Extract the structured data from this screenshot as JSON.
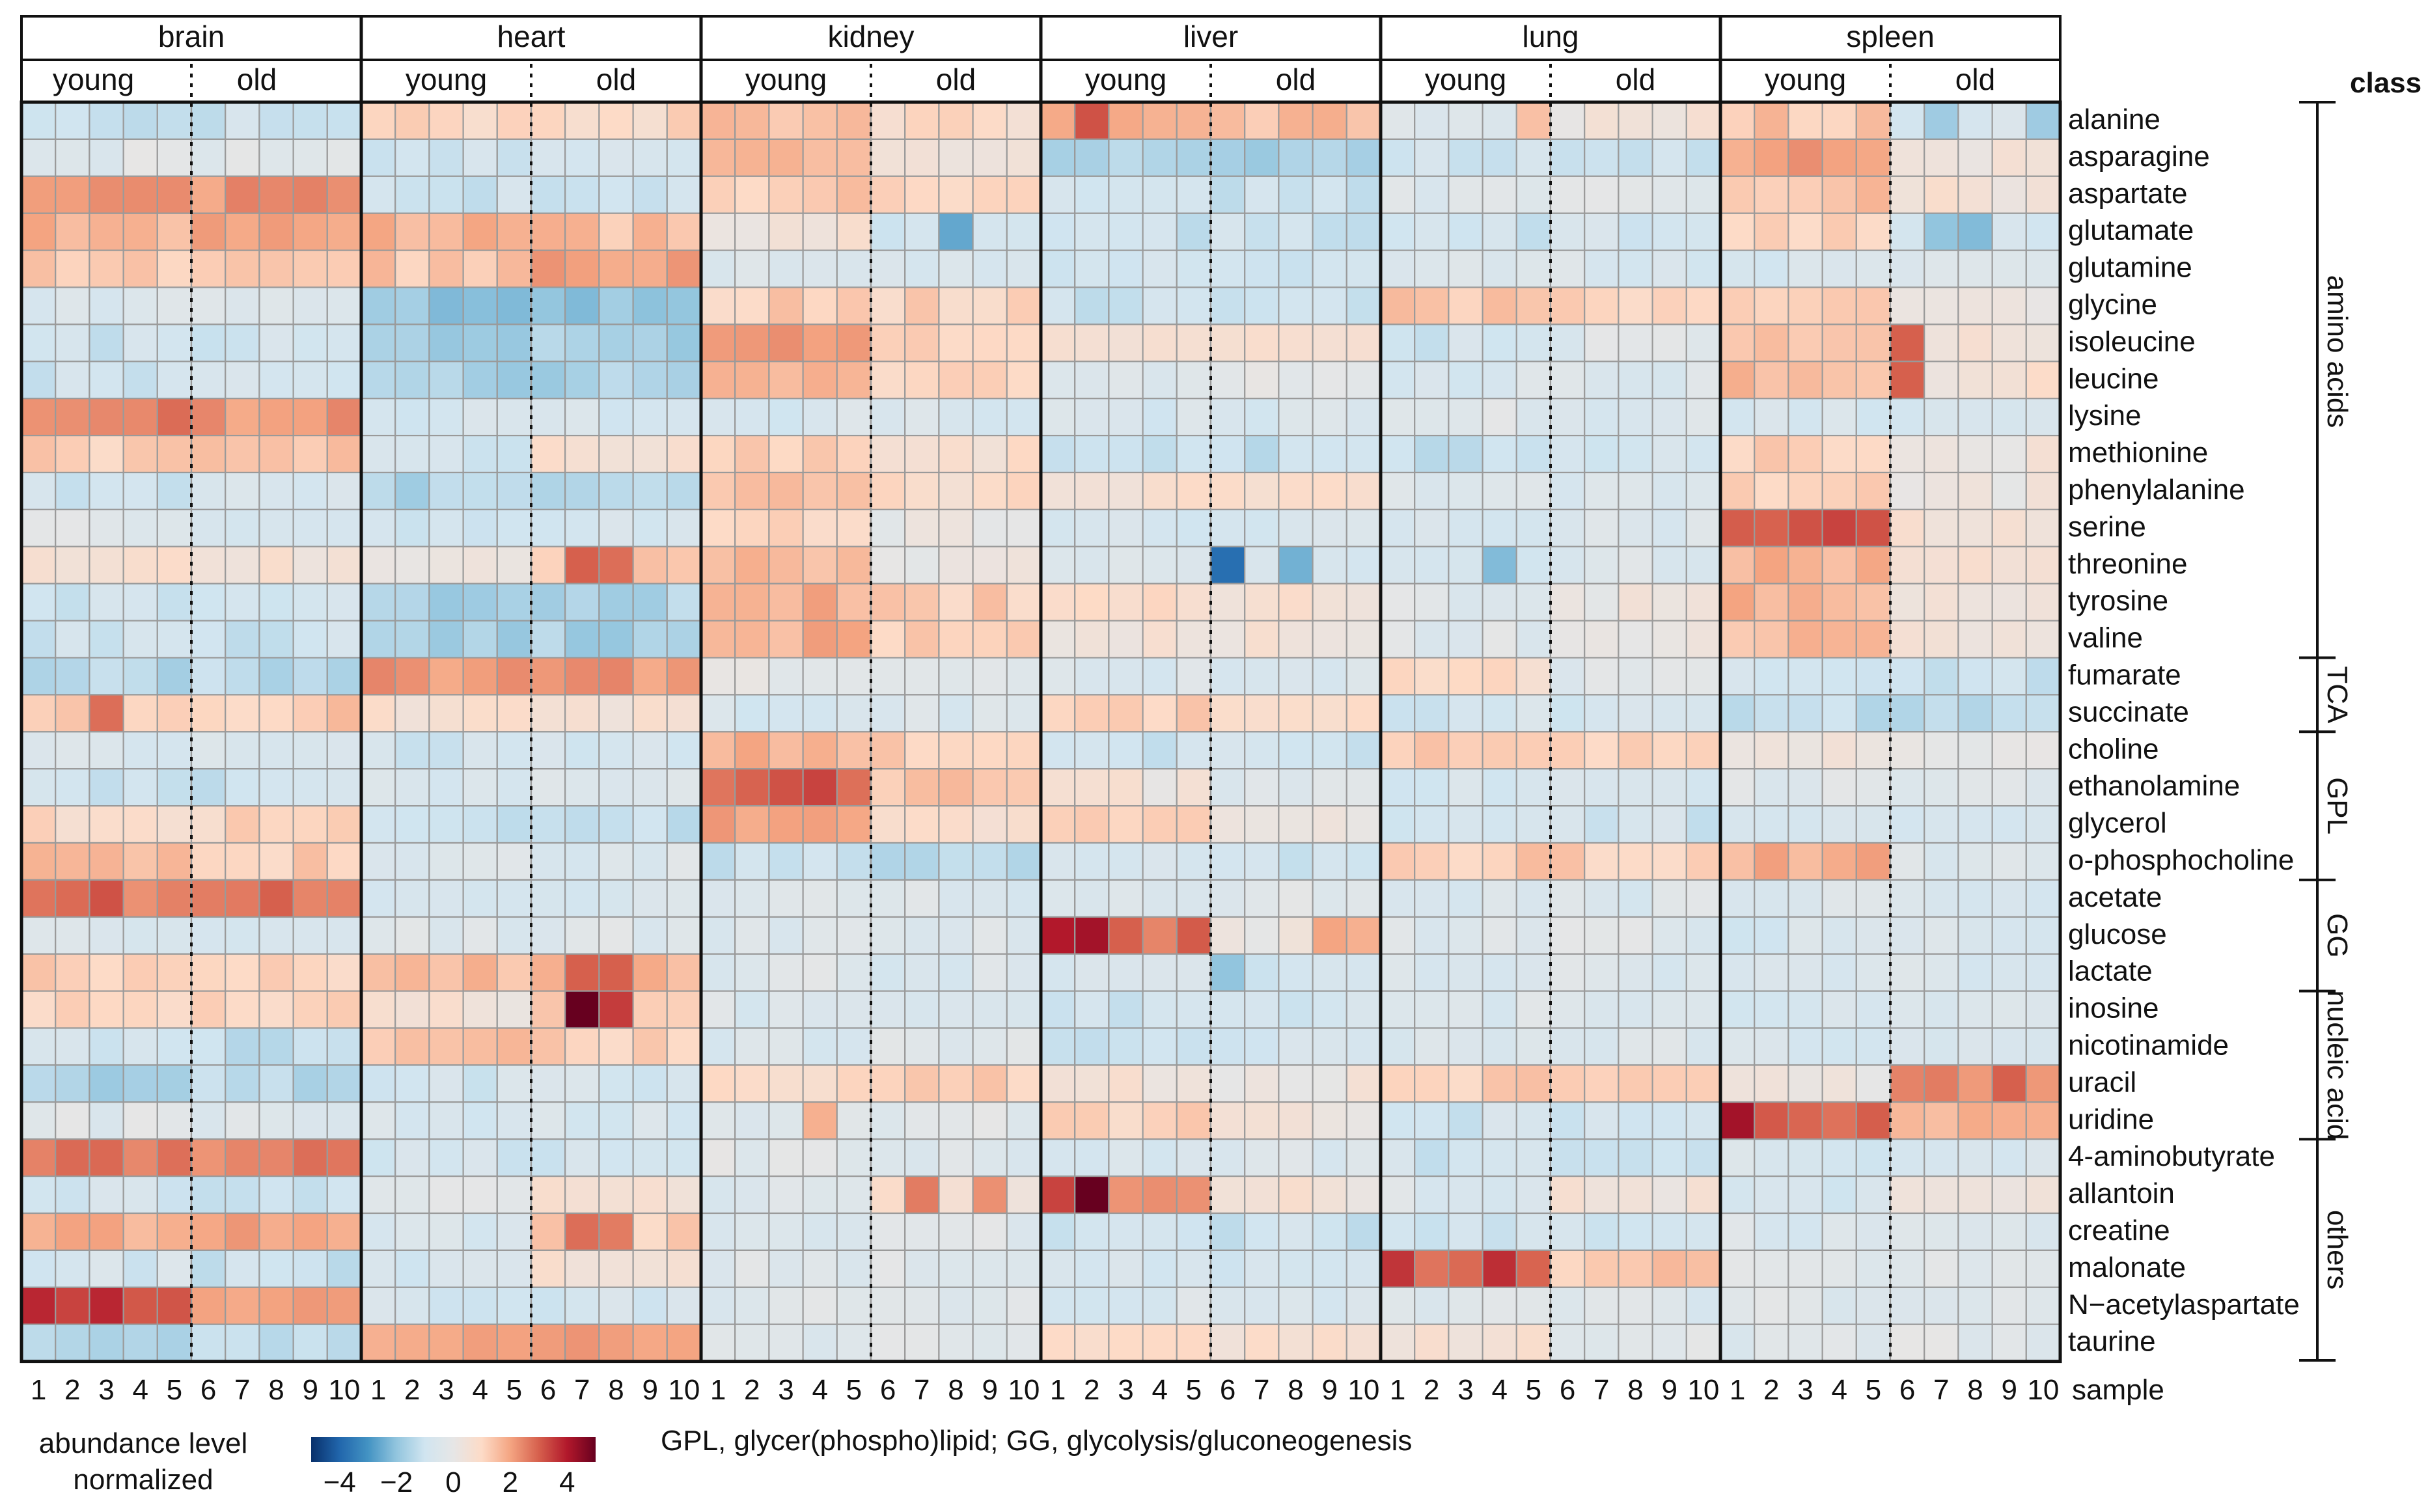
{
  "chart_data": {
    "type": "heatmap",
    "title": "",
    "colorbar": {
      "title_line1": "abundance level",
      "title_line2": "normalized",
      "ticks": [
        -4,
        -2,
        0,
        2,
        4
      ],
      "tick_labels": [
        "−4",
        "−2",
        "0",
        "2",
        "4"
      ],
      "range": [
        -5,
        5
      ],
      "colors": [
        "#08306b",
        "#2166ac",
        "#4393c3",
        "#92c5de",
        "#d1e5f0",
        "#e6e6e6",
        "#fddbc7",
        "#f4a582",
        "#d6604d",
        "#b2182b",
        "#67001f"
      ]
    },
    "tissues": [
      "brain",
      "heart",
      "kidney",
      "liver",
      "lung",
      "spleen"
    ],
    "group_labels": [
      "young",
      "old"
    ],
    "samples": [
      "1",
      "2",
      "3",
      "4",
      "5",
      "6",
      "7",
      "8",
      "9",
      "10"
    ],
    "sample_axis_label": "sample",
    "class_header": "class",
    "footnote": "GPL, glycer(phospho)lipid; GG, glycolysis/gluconeogenesis",
    "metabolites": [
      "alanine",
      "asparagine",
      "aspartate",
      "glutamate",
      "glutamine",
      "glycine",
      "isoleucine",
      "leucine",
      "lysine",
      "methionine",
      "phenylalanine",
      "serine",
      "threonine",
      "tyrosine",
      "valine",
      "fumarate",
      "succinate",
      "choline",
      "ethanolamine",
      "glycerol",
      "o-phosphocholine",
      "acetate",
      "glucose",
      "lactate",
      "inosine",
      "nicotinamide",
      "uracil",
      "uridine",
      "4-aminobutyrate",
      "allantoin",
      "creatine",
      "malonate",
      "N−acetylaspartate",
      "taurine"
    ],
    "classes": [
      {
        "name": "amino acids",
        "start": 0,
        "end": 14
      },
      {
        "name": "TCA",
        "start": 15,
        "end": 16
      },
      {
        "name": "GPL",
        "start": 17,
        "end": 20
      },
      {
        "name": "GG",
        "start": 21,
        "end": 23
      },
      {
        "name": "nucleic acid",
        "start": 24,
        "end": 27
      },
      {
        "name": "others",
        "start": 28,
        "end": 33
      }
    ],
    "base_values": {
      "brain": [
        [
          -1,
          -1
        ],
        [
          -0.3,
          -0.3
        ],
        [
          2.2,
          2.2
        ],
        [
          1.7,
          1.9
        ],
        [
          1.2,
          1.6
        ],
        [
          -0.6,
          -0.6
        ],
        [
          -1,
          -0.8
        ],
        [
          -1,
          -0.8
        ],
        [
          2.6,
          2.2
        ],
        [
          1.2,
          1.4
        ],
        [
          -1,
          -0.8
        ],
        [
          -0.4,
          -0.5
        ],
        [
          0.7,
          0.5
        ],
        [
          -1,
          -1
        ],
        [
          -1,
          -1
        ],
        [
          -1.4,
          -1.4
        ],
        [
          1.1,
          1.3
        ],
        [
          -0.7,
          -0.6
        ],
        [
          -0.9,
          -1
        ],
        [
          0.9,
          1.1
        ],
        [
          1.5,
          1.2
        ],
        [
          2.6,
          2.4
        ],
        [
          -0.7,
          -0.7
        ],
        [
          1.2,
          1.1
        ],
        [
          1.2,
          1.2
        ],
        [
          -0.9,
          -1.3
        ],
        [
          -1.5,
          -1.4
        ],
        [
          -0.3,
          -0.5
        ],
        [
          2.7,
          2.5
        ],
        [
          -0.9,
          -1.1
        ],
        [
          1.8,
          1.9
        ],
        [
          -0.8,
          -1.1
        ],
        [
          3.1,
          1.9
        ],
        [
          -1.3,
          -1.3
        ]
      ],
      "heart": [
        [
          1,
          1
        ],
        [
          -0.8,
          -0.8
        ],
        [
          -1,
          -1
        ],
        [
          1.8,
          1.5
        ],
        [
          1.4,
          2
        ],
        [
          -2,
          -2
        ],
        [
          -1.6,
          -1.6
        ],
        [
          -1.6,
          -1.6
        ],
        [
          -0.8,
          -0.8
        ],
        [
          -0.9,
          0.6
        ],
        [
          -1.5,
          -1.5
        ],
        [
          -0.8,
          -0.8
        ],
        [
          0.4,
          1.3
        ],
        [
          -1.6,
          -1.5
        ],
        [
          -1.6,
          -1.6
        ],
        [
          2.2,
          2.2
        ],
        [
          0.6,
          0.5
        ],
        [
          -0.9,
          -0.9
        ],
        [
          -0.7,
          -0.6
        ],
        [
          -1.1,
          -1.2
        ],
        [
          -0.5,
          -0.5
        ],
        [
          -0.7,
          -0.7
        ],
        [
          -0.4,
          -0.4
        ],
        [
          1.5,
          1.6
        ],
        [
          0.5,
          1.5
        ],
        [
          1.4,
          1.2
        ],
        [
          -0.8,
          -0.8
        ],
        [
          -0.7,
          -0.7
        ],
        [
          -0.9,
          -0.9
        ],
        [
          -0.4,
          0.8
        ],
        [
          -0.6,
          1.2
        ],
        [
          -0.8,
          0.6
        ],
        [
          -0.8,
          -0.8
        ],
        [
          2,
          2.2
        ]
      ],
      "kidney": [
        [
          1.4,
          0.9
        ],
        [
          1.8,
          0.6
        ],
        [
          1.3,
          1
        ],
        [
          0.5,
          -0.8
        ],
        [
          -0.6,
          -0.6
        ],
        [
          1.2,
          1.1
        ],
        [
          2,
          1
        ],
        [
          1.9,
          1
        ],
        [
          -0.7,
          -0.6
        ],
        [
          1.2,
          0.8
        ],
        [
          1.6,
          0.9
        ],
        [
          1.1,
          0.1
        ],
        [
          1.6,
          0.2
        ],
        [
          1.8,
          1.2
        ],
        [
          1.8,
          1.2
        ],
        [
          0,
          -0.3
        ],
        [
          -0.8,
          -0.6
        ],
        [
          1.8,
          1.2
        ],
        [
          3,
          1.5
        ],
        [
          2.1,
          0.6
        ],
        [
          -1.1,
          -1.2
        ],
        [
          -0.4,
          -0.5
        ],
        [
          -0.4,
          -0.4
        ],
        [
          -0.4,
          -0.5
        ],
        [
          -0.5,
          -0.4
        ],
        [
          -0.5,
          -0.3
        ],
        [
          0.8,
          1.3
        ],
        [
          -0.3,
          -0.3
        ],
        [
          -0.3,
          -0.4
        ],
        [
          -0.4,
          0.6
        ],
        [
          -0.5,
          -0.4
        ],
        [
          -0.3,
          -0.3
        ],
        [
          -0.4,
          -0.3
        ],
        [
          -0.3,
          -0.3
        ]
      ],
      "liver": [
        [
          1.8,
          1.5
        ],
        [
          -1.6,
          -1.6
        ],
        [
          -1,
          -1
        ],
        [
          -1,
          -1
        ],
        [
          -1,
          -1
        ],
        [
          -1.1,
          -1.1
        ],
        [
          0.4,
          0.5
        ],
        [
          -0.3,
          -0.2
        ],
        [
          -0.7,
          -0.7
        ],
        [
          -1.2,
          -1.2
        ],
        [
          0.7,
          0.7
        ],
        [
          -0.8,
          -0.8
        ],
        [
          -0.4,
          -0.9
        ],
        [
          0.8,
          0.6
        ],
        [
          0.4,
          0.5
        ],
        [
          -0.6,
          -0.6
        ],
        [
          1.3,
          1.1
        ],
        [
          -0.9,
          -0.9
        ],
        [
          0.4,
          -0.3
        ],
        [
          1.2,
          0.3
        ],
        [
          -0.9,
          -0.9
        ],
        [
          -0.3,
          -0.3
        ],
        [
          2.8,
          0.3
        ],
        [
          -0.5,
          -1
        ],
        [
          -0.9,
          -0.9
        ],
        [
          -0.9,
          -0.9
        ],
        [
          0.5,
          0.3
        ],
        [
          1.1,
          0.4
        ],
        [
          -0.6,
          -0.6
        ],
        [
          2,
          0.5
        ],
        [
          -1,
          -1
        ],
        [
          -0.7,
          -0.7
        ],
        [
          -0.6,
          -0.6
        ],
        [
          0.8,
          0.7
        ]
      ],
      "lung": [
        [
          -0.4,
          0.4
        ],
        [
          -1,
          -1
        ],
        [
          -0.5,
          -0.4
        ],
        [
          -0.9,
          -0.8
        ],
        [
          -0.6,
          -0.6
        ],
        [
          1.3,
          1
        ],
        [
          -0.9,
          -0.4
        ],
        [
          -0.6,
          -0.4
        ],
        [
          -0.4,
          -0.5
        ],
        [
          -1.2,
          -0.7
        ],
        [
          -0.5,
          -0.5
        ],
        [
          -0.6,
          -0.6
        ],
        [
          -1,
          -0.4
        ],
        [
          -0.3,
          0.2
        ],
        [
          -0.3,
          0.2
        ],
        [
          0.8,
          -0.3
        ],
        [
          -0.8,
          -0.8
        ],
        [
          1.3,
          1.2
        ],
        [
          -0.7,
          -0.7
        ],
        [
          -0.9,
          -0.9
        ],
        [
          1.3,
          1.2
        ],
        [
          -0.5,
          -0.5
        ],
        [
          -0.4,
          -0.4
        ],
        [
          -0.5,
          -0.5
        ],
        [
          -0.5,
          -0.5
        ],
        [
          -0.4,
          -0.4
        ],
        [
          1.2,
          1.1
        ],
        [
          -0.9,
          -0.9
        ],
        [
          -0.9,
          -0.9
        ],
        [
          -0.5,
          0.4
        ],
        [
          -0.9,
          -0.9
        ],
        [
          3,
          1.3
        ],
        [
          -0.5,
          -0.5
        ],
        [
          0.6,
          -0.3
        ]
      ],
      "spleen": [
        [
          1.4,
          -0.6
        ],
        [
          2.1,
          0.3
        ],
        [
          1.5,
          0.5
        ],
        [
          1.2,
          -0.9
        ],
        [
          -0.8,
          -0.6
        ],
        [
          1.3,
          0.4
        ],
        [
          1.6,
          0.6
        ],
        [
          1.6,
          0.6
        ],
        [
          -0.8,
          -0.8
        ],
        [
          1.3,
          0.3
        ],
        [
          1.2,
          0.2
        ],
        [
          3,
          0.6
        ],
        [
          1.8,
          0.6
        ],
        [
          1.8,
          0.6
        ],
        [
          1.5,
          0.4
        ],
        [
          -0.9,
          -1
        ],
        [
          -1.2,
          -1.2
        ],
        [
          0.3,
          0.2
        ],
        [
          -0.4,
          -0.4
        ],
        [
          -0.6,
          -0.8
        ],
        [
          1.8,
          -0.5
        ],
        [
          -0.6,
          -0.6
        ],
        [
          -0.7,
          -0.6
        ],
        [
          -0.7,
          -0.6
        ],
        [
          -0.7,
          -0.5
        ],
        [
          -0.7,
          -0.4
        ],
        [
          0.3,
          2.3
        ],
        [
          2.9,
          1.7
        ],
        [
          -0.7,
          -0.7
        ],
        [
          -0.9,
          0.5
        ],
        [
          -0.6,
          -0.5
        ],
        [
          -0.4,
          -0.4
        ],
        [
          -0.3,
          -0.3
        ],
        [
          -0.3,
          -0.3
        ]
      ]
    },
    "overrides": [
      {
        "tissue": "liver",
        "metabolite": "alanine",
        "sample": 2,
        "value": 3.2
      },
      {
        "tissue": "liver",
        "metabolite": "glucose",
        "sample": 1,
        "value": 4.0
      },
      {
        "tissue": "liver",
        "metabolite": "glucose",
        "sample": 2,
        "value": 4.2
      },
      {
        "tissue": "liver",
        "metabolite": "glucose",
        "sample": 3,
        "value": 3.0
      },
      {
        "tissue": "liver",
        "metabolite": "glucose",
        "sample": 9,
        "value": 2.0
      },
      {
        "tissue": "liver",
        "metabolite": "glucose",
        "sample": 10,
        "value": 1.8
      },
      {
        "tissue": "liver",
        "metabolite": "allantoin",
        "sample": 1,
        "value": 3.4
      },
      {
        "tissue": "liver",
        "metabolite": "allantoin",
        "sample": 2,
        "value": 5.0
      },
      {
        "tissue": "liver",
        "metabolite": "threonine",
        "sample": 6,
        "value": -3.8
      },
      {
        "tissue": "liver",
        "metabolite": "threonine",
        "sample": 8,
        "value": -2.4
      },
      {
        "tissue": "liver",
        "metabolite": "lactate",
        "sample": 6,
        "value": -2.0
      },
      {
        "tissue": "heart",
        "metabolite": "inosine",
        "sample": 7,
        "value": 5.0
      },
      {
        "tissue": "heart",
        "metabolite": "inosine",
        "sample": 8,
        "value": 3.5
      },
      {
        "tissue": "heart",
        "metabolite": "lactate",
        "sample": 7,
        "value": 3.0
      },
      {
        "tissue": "heart",
        "metabolite": "lactate",
        "sample": 8,
        "value": 3.0
      },
      {
        "tissue": "heart",
        "metabolite": "threonine",
        "sample": 7,
        "value": 3.0
      },
      {
        "tissue": "heart",
        "metabolite": "threonine",
        "sample": 8,
        "value": 2.8
      },
      {
        "tissue": "heart",
        "metabolite": "creatine",
        "sample": 7,
        "value": 2.8
      },
      {
        "tissue": "heart",
        "metabolite": "creatine",
        "sample": 8,
        "value": 2.6
      },
      {
        "tissue": "kidney",
        "metabolite": "glutamate",
        "sample": 8,
        "value": -2.6
      },
      {
        "tissue": "kidney",
        "metabolite": "ethanolamine",
        "sample": 4,
        "value": 3.4
      },
      {
        "tissue": "kidney",
        "metabolite": "allantoin",
        "sample": 7,
        "value": 2.6
      },
      {
        "tissue": "kidney",
        "metabolite": "allantoin",
        "sample": 9,
        "value": 2.3
      },
      {
        "tissue": "kidney",
        "metabolite": "uridine",
        "sample": 4,
        "value": 1.8
      },
      {
        "tissue": "brain",
        "metabolite": "succinate",
        "sample": 3,
        "value": 2.8
      },
      {
        "tissue": "brain",
        "metabolite": "N−acetylaspartate",
        "sample": 1,
        "value": 3.8
      },
      {
        "tissue": "brain",
        "metabolite": "N−acetylaspartate",
        "sample": 3,
        "value": 3.8
      },
      {
        "tissue": "brain",
        "metabolite": "acetate",
        "sample": 3,
        "value": 3.2
      },
      {
        "tissue": "brain",
        "metabolite": "acetate",
        "sample": 8,
        "value": 3.0
      },
      {
        "tissue": "lung",
        "metabolite": "malonate",
        "sample": 1,
        "value": 3.6
      },
      {
        "tissue": "lung",
        "metabolite": "malonate",
        "sample": 4,
        "value": 3.7
      },
      {
        "tissue": "lung",
        "metabolite": "threonine",
        "sample": 4,
        "value": -2.2
      },
      {
        "tissue": "lung",
        "metabolite": "alanine",
        "sample": 5,
        "value": 1.5
      },
      {
        "tissue": "spleen",
        "metabolite": "uridine",
        "sample": 1,
        "value": 4.2
      },
      {
        "tissue": "spleen",
        "metabolite": "uracil",
        "sample": 9,
        "value": 3.0
      },
      {
        "tissue": "spleen",
        "metabolite": "uracil",
        "sample": 7,
        "value": 2.6
      },
      {
        "tissue": "spleen",
        "metabolite": "isoleucine",
        "sample": 6,
        "value": 3.0
      },
      {
        "tissue": "spleen",
        "metabolite": "leucine",
        "sample": 6,
        "value": 3.0
      },
      {
        "tissue": "spleen",
        "metabolite": "glutamate",
        "sample": 7,
        "value": -2.0
      },
      {
        "tissue": "spleen",
        "metabolite": "glutamate",
        "sample": 8,
        "value": -2.2
      },
      {
        "tissue": "spleen",
        "metabolite": "alanine",
        "sample": 7,
        "value": -1.8
      },
      {
        "tissue": "spleen",
        "metabolite": "alanine",
        "sample": 10,
        "value": -1.8
      },
      {
        "tissue": "spleen",
        "metabolite": "serine",
        "sample": 4,
        "value": 3.4
      },
      {
        "tissue": "spleen",
        "metabolite": "serine",
        "sample": 5,
        "value": 3.2
      }
    ]
  }
}
